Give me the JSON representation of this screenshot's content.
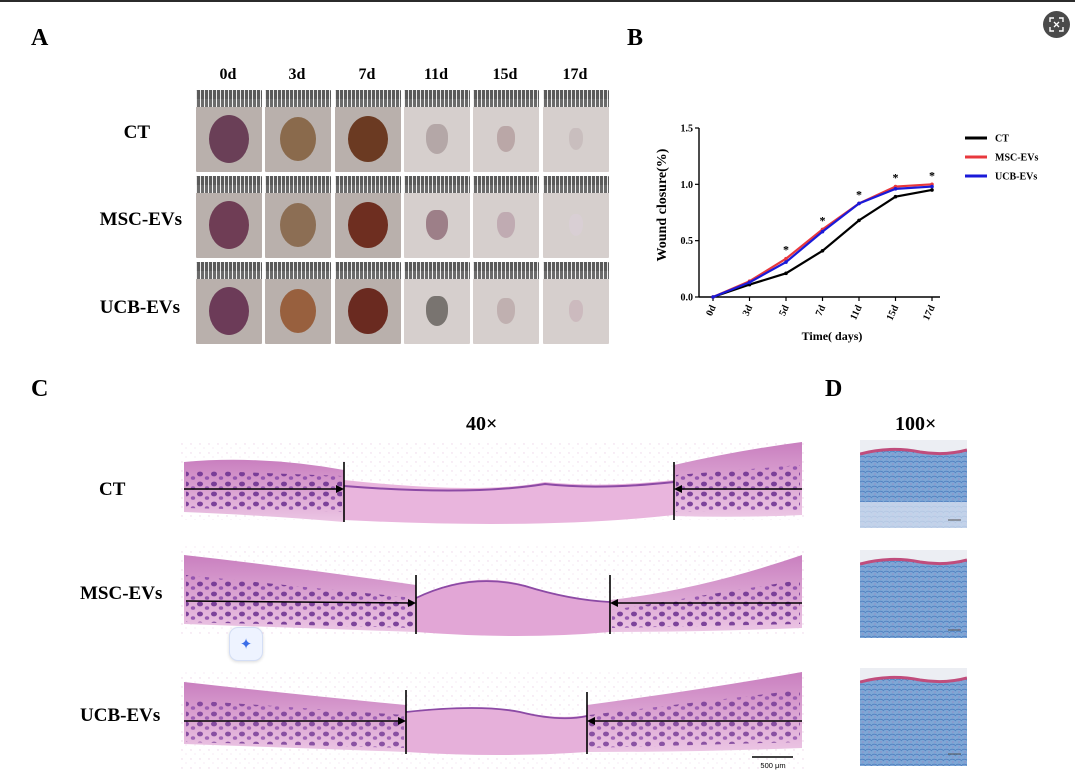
{
  "panels": {
    "a": "A",
    "b": "B",
    "c": "C",
    "d": "D"
  },
  "panel_a": {
    "timepoints": [
      "0d",
      "3d",
      "7d",
      "11d",
      "15d",
      "17d"
    ],
    "groups": [
      "CT",
      "MSC-EVs",
      "UCB-EVs"
    ]
  },
  "panel_c": {
    "magnification": "40×",
    "groups": [
      "CT",
      "MSC-EVs",
      "UCB-EVs"
    ],
    "scale_bar": "500 μm"
  },
  "panel_d": {
    "magnification": "100×"
  },
  "colors": {
    "ct": "#000000",
    "msc": "#e8383d",
    "ucb": "#1a1ad9",
    "he_pink": "#d98cc4",
    "he_purple": "#7a3a9a",
    "trichrome_blue": "#5f8fc9"
  },
  "icons": {
    "corner": "screenshot-icon",
    "floating": "sparkle-edit-icon"
  },
  "chart_data": {
    "type": "line",
    "x": [
      "0d",
      "3d",
      "5d",
      "7d",
      "11d",
      "15d",
      "17d"
    ],
    "series": [
      {
        "name": "CT",
        "values": [
          0.0,
          0.11,
          0.21,
          0.41,
          0.68,
          0.89,
          0.95
        ]
      },
      {
        "name": "MSC-EVs",
        "values": [
          0.0,
          0.14,
          0.34,
          0.6,
          0.83,
          0.98,
          1.0
        ]
      },
      {
        "name": "UCB-EVs",
        "values": [
          0.0,
          0.13,
          0.31,
          0.58,
          0.83,
          0.96,
          0.98
        ]
      }
    ],
    "significance": [
      "",
      "",
      "*",
      "*",
      "*",
      "*",
      "*"
    ],
    "xlabel": "Time( days)",
    "ylabel": "Wound closure(%)",
    "yticks": [
      "0.0",
      "0.5",
      "1.0",
      "1.5"
    ],
    "ylim": [
      0,
      1.5
    ],
    "legend": "right",
    "grid": false
  }
}
